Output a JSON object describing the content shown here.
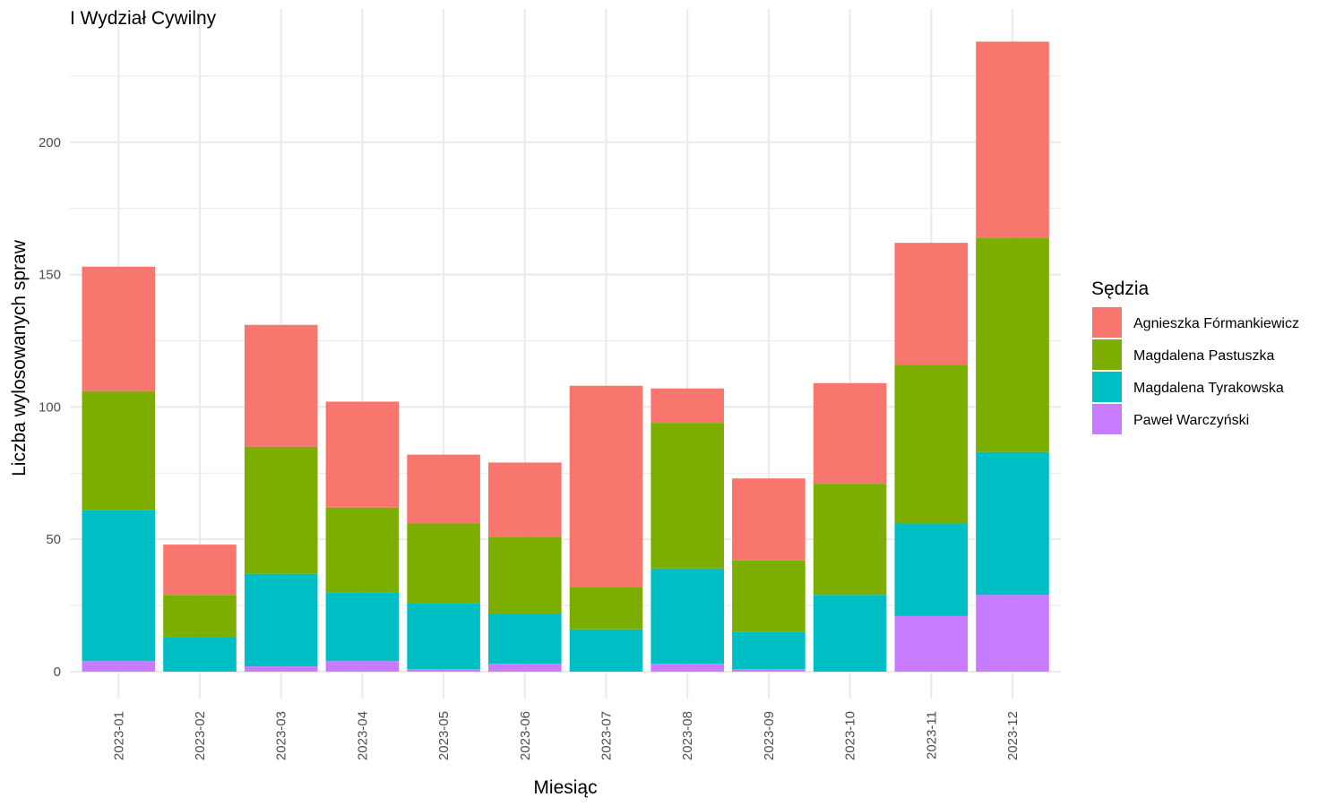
{
  "chart_data": {
    "type": "bar",
    "stacked": true,
    "title": "I Wydział Cywilny",
    "xlabel": "Miesiąc",
    "ylabel": "Liczba wylosowanych spraw",
    "ylim": [
      0,
      240
    ],
    "yticks": [
      0,
      50,
      100,
      150,
      200
    ],
    "grid": true,
    "legend_position": "right",
    "legend_title": "Sędzia",
    "categories": [
      "2023-01",
      "2023-02",
      "2023-03",
      "2023-04",
      "2023-05",
      "2023-06",
      "2023-07",
      "2023-08",
      "2023-09",
      "2023-10",
      "2023-11",
      "2023-12"
    ],
    "series": [
      {
        "name": "Agnieszka Fórmankiewicz",
        "color": "#F8766D",
        "values": [
          47,
          19,
          46,
          40,
          26,
          28,
          76,
          13,
          31,
          38,
          46,
          74
        ]
      },
      {
        "name": "Magdalena Pastuszka",
        "color": "#7CAE00",
        "values": [
          45,
          16,
          48,
          32,
          30,
          29,
          16,
          55,
          27,
          42,
          60,
          81
        ]
      },
      {
        "name": "Magdalena Tyrakowska",
        "color": "#00BFC4",
        "values": [
          57,
          13,
          35,
          26,
          25,
          19,
          16,
          36,
          14,
          29,
          35,
          54
        ]
      },
      {
        "name": "Paweł Warczyński",
        "color": "#C77CFF",
        "values": [
          4,
          0,
          2,
          4,
          1,
          3,
          0,
          3,
          1,
          0,
          21,
          29
        ]
      }
    ]
  }
}
